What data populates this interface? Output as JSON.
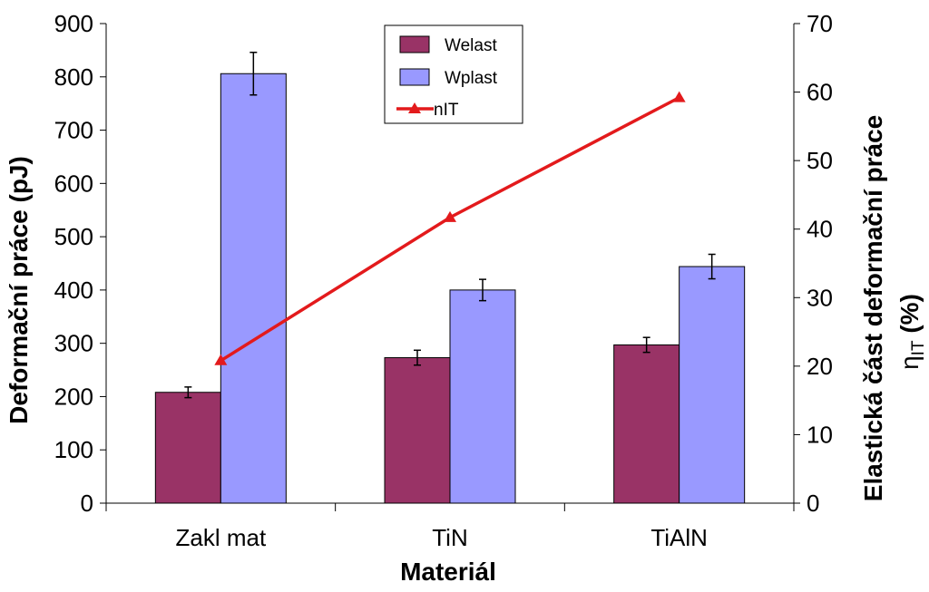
{
  "chart_data": {
    "type": "bar",
    "categories": [
      "Zakl mat",
      "TiN",
      "TiAlN"
    ],
    "series": [
      {
        "name": "Welast",
        "kind": "bar",
        "axis": "left",
        "color": "#993366",
        "values": [
          208,
          273,
          297
        ],
        "errors": [
          10,
          14,
          14
        ]
      },
      {
        "name": "Wplast",
        "kind": "bar",
        "axis": "left",
        "color": "#9999ff",
        "values": [
          806,
          400,
          444
        ],
        "errors": [
          40,
          20,
          23
        ]
      },
      {
        "name": "nIT",
        "kind": "line",
        "axis": "right",
        "color": "#e31a1c",
        "values": [
          20.8,
          41.7,
          59.2
        ]
      }
    ],
    "xlabel": "Materiál",
    "ylabel": "Deformační práce (pJ)",
    "y2label_line1": "Elastická část deformační práce",
    "y2label_symbol": "η",
    "y2label_sub": "IT",
    "y2label_rest": " (%)",
    "ylim": [
      0,
      900
    ],
    "y2lim": [
      0,
      70
    ],
    "yticks": [
      0,
      100,
      200,
      300,
      400,
      500,
      600,
      700,
      800,
      900
    ],
    "y2ticks": [
      0,
      10,
      20,
      30,
      40,
      50,
      60,
      70
    ],
    "grid": false,
    "legend_position": "top-center"
  }
}
